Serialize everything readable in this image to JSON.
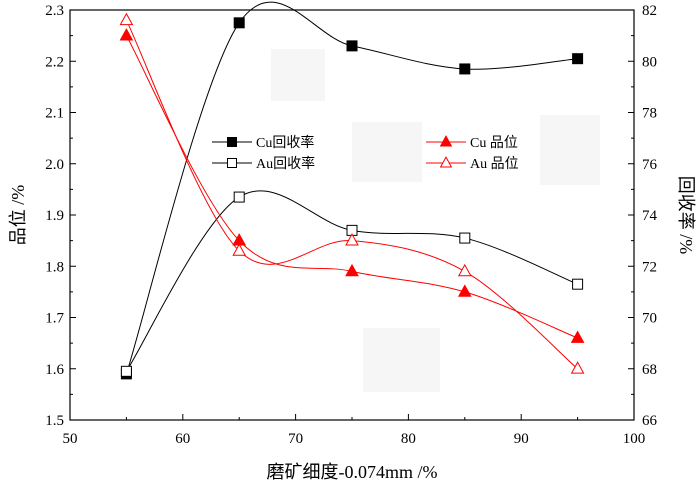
{
  "chart_data": {
    "type": "line",
    "title": "",
    "xlabel": "磨矿细度-0.074mm /%",
    "ylabel_left": "品位 /%",
    "ylabel_right": "回收率 /%",
    "xlim": [
      50,
      100
    ],
    "ylim_left": [
      1.5,
      2.3
    ],
    "ylim_right": [
      66,
      82
    ],
    "xticks": [
      "50",
      "60",
      "70",
      "80",
      "90",
      "100"
    ],
    "yticks_left": [
      "1.5",
      "1.6",
      "1.7",
      "1.8",
      "1.9",
      "2.0",
      "2.1",
      "2.2",
      "2.3"
    ],
    "yticks_right": [
      "66",
      "68",
      "70",
      "72",
      "74",
      "76",
      "78",
      "80",
      "82"
    ],
    "x": [
      55,
      65,
      75,
      85,
      95
    ],
    "grid": false,
    "legend_position": "upper-middle",
    "series": [
      {
        "name": "Cu回收率",
        "axis": "right",
        "marker": "filled-square",
        "color": "#000000",
        "values": [
          67.8,
          81.5,
          80.6,
          79.7,
          80.1
        ]
      },
      {
        "name": "Au回收率",
        "axis": "right",
        "marker": "open-square",
        "color": "#000000",
        "values": [
          67.9,
          74.7,
          73.4,
          73.1,
          71.3
        ]
      },
      {
        "name": "Cu 品位",
        "axis": "left",
        "marker": "filled-triangle",
        "color": "#ff0000",
        "values": [
          2.25,
          1.85,
          1.79,
          1.75,
          1.66
        ]
      },
      {
        "name": "Au 品位",
        "axis": "left",
        "marker": "open-triangle",
        "color": "#ff0000",
        "values": [
          2.28,
          1.83,
          1.85,
          1.79,
          1.6
        ]
      }
    ]
  }
}
